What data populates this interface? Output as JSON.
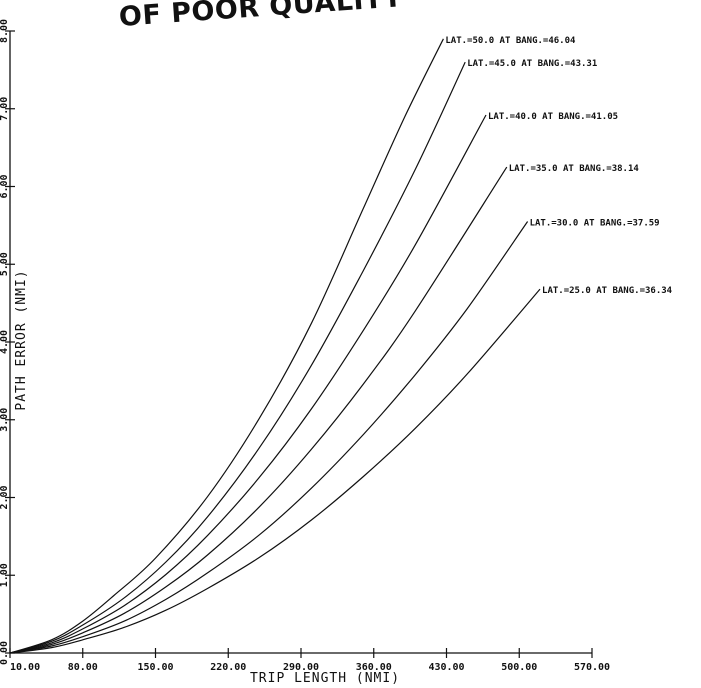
{
  "stamp": "OF POOR QUALITY",
  "chart_data": {
    "type": "line",
    "title": "",
    "xlabel": "TRIP LENGTH (NMI)",
    "ylabel": "PATH ERROR (NMI)",
    "xlim": [
      10,
      570
    ],
    "ylim": [
      0,
      8
    ],
    "x_ticks": [
      "10.00",
      "80.00",
      "150.00",
      "220.00",
      "290.00",
      "360.00",
      "430.00",
      "500.00",
      "570.00"
    ],
    "y_ticks": [
      "0.00",
      "1.00",
      "2.00",
      "3.00",
      "4.00",
      "5.00",
      "6.00",
      "7.00",
      "8.00"
    ],
    "grid": false,
    "legend": "labels at line ends",
    "series": [
      {
        "name": "LAT.=50.0 AT BANG.=46.04",
        "x": [
          10,
          50,
          80,
          110,
          150,
          200,
          250,
          300,
          350,
          390,
          427
        ],
        "y": [
          0,
          0.17,
          0.41,
          0.74,
          1.22,
          2.01,
          3.02,
          4.24,
          5.72,
          6.9,
          7.9
        ]
      },
      {
        "name": "LAT.=45.0 AT BANG.=43.31",
        "x": [
          10,
          50,
          80,
          120,
          160,
          200,
          250,
          300,
          350,
          400,
          448
        ],
        "y": [
          0,
          0.15,
          0.36,
          0.71,
          1.17,
          1.75,
          2.64,
          3.7,
          4.92,
          6.22,
          7.6
        ]
      },
      {
        "name": "LAT.=40.0 AT BANG.=41.05",
        "x": [
          10,
          50,
          80,
          120,
          160,
          200,
          250,
          300,
          350,
          400,
          468
        ],
        "y": [
          0,
          0.13,
          0.31,
          0.61,
          1.01,
          1.51,
          2.26,
          3.14,
          4.15,
          5.25,
          6.92
        ]
      },
      {
        "name": "LAT.=35.0 AT BANG.=38.14",
        "x": [
          10,
          50,
          80,
          120,
          160,
          200,
          250,
          300,
          350,
          400,
          488
        ],
        "y": [
          0,
          0.11,
          0.26,
          0.51,
          0.85,
          1.26,
          1.88,
          2.62,
          3.46,
          4.4,
          6.25
        ]
      },
      {
        "name": "LAT.=30.0 AT BANG.=37.59",
        "x": [
          10,
          50,
          80,
          120,
          160,
          200,
          250,
          300,
          350,
          400,
          450,
          508
        ],
        "y": [
          0,
          0.09,
          0.21,
          0.41,
          0.69,
          1.03,
          1.52,
          2.12,
          2.81,
          3.58,
          4.43,
          5.55
        ]
      },
      {
        "name": "LAT.=25.0 AT BANG.=36.34",
        "x": [
          10,
          50,
          80,
          120,
          160,
          200,
          250,
          300,
          350,
          400,
          450,
          520
        ],
        "y": [
          0,
          0.07,
          0.17,
          0.33,
          0.55,
          0.83,
          1.23,
          1.71,
          2.27,
          2.89,
          3.59,
          4.68
        ]
      }
    ]
  }
}
